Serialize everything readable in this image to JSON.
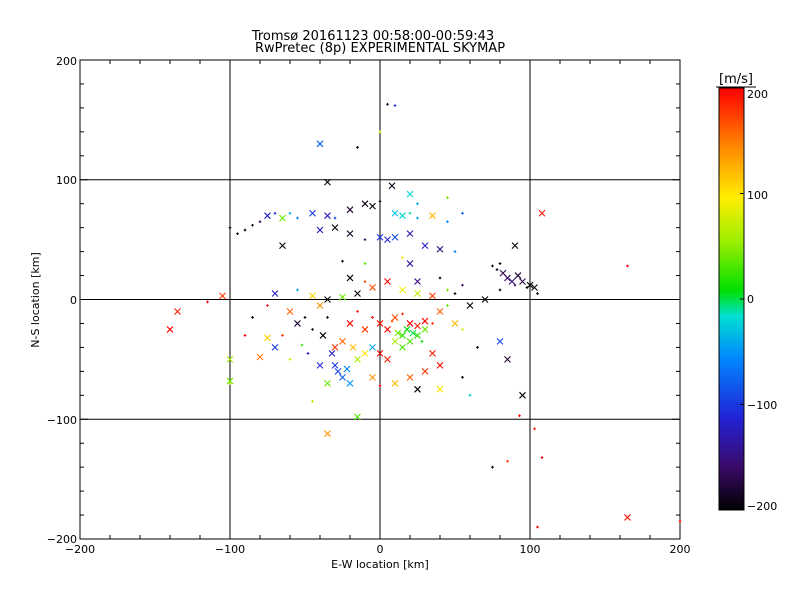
{
  "chart_data": {
    "type": "scatter",
    "title": "Tromsø 20161123 00:58:00-00:59:43",
    "subtitle": "RwPretec (8p) EXPERIMENTAL SKYMAP",
    "xlabel": "E-W location [km]",
    "ylabel": "N-S location [km]",
    "xlim": [
      -200,
      200
    ],
    "ylim": [
      -200,
      200
    ],
    "x_ticks": [
      "−200",
      "−100",
      "0",
      "100",
      "200"
    ],
    "y_ticks": [
      "−200",
      "−100",
      "0",
      "100",
      "200"
    ],
    "grid": true,
    "grid_values": [
      -100,
      0,
      100
    ],
    "colorbar": {
      "unit": "[m/s]",
      "range": [
        -200,
        200
      ],
      "tick_labels": [
        "200",
        "100",
        "0",
        "−100",
        "−200"
      ],
      "colormap": "rainbow-black (black=-200, purple, blue, cyan, green, yellow, red=200)"
    },
    "markers": [
      "plus-small",
      "x"
    ],
    "points": [
      [
        -40,
        130,
        -80,
        "x"
      ],
      [
        -15,
        127,
        -200,
        "plus"
      ],
      [
        5,
        163,
        -180,
        "plus"
      ],
      [
        10,
        162,
        -110,
        "plus"
      ],
      [
        0,
        140,
        60,
        "plus"
      ],
      [
        -35,
        98,
        -200,
        "x"
      ],
      [
        8,
        95,
        -190,
        "x"
      ],
      [
        20,
        88,
        -20,
        "x"
      ],
      [
        25,
        80,
        -40,
        "plus"
      ],
      [
        45,
        85,
        40,
        "plus"
      ],
      [
        -100,
        60,
        -200,
        "plus"
      ],
      [
        -95,
        55,
        -200,
        "plus"
      ],
      [
        -90,
        58,
        -200,
        "plus"
      ],
      [
        -85,
        62,
        -200,
        "plus"
      ],
      [
        -80,
        65,
        -160,
        "plus"
      ],
      [
        -75,
        70,
        -120,
        "x"
      ],
      [
        -70,
        72,
        -100,
        "plus"
      ],
      [
        -65,
        68,
        40,
        "x"
      ],
      [
        -60,
        72,
        -40,
        "plus"
      ],
      [
        -55,
        68,
        -60,
        "plus"
      ],
      [
        -45,
        72,
        -100,
        "x"
      ],
      [
        -35,
        70,
        -120,
        "x"
      ],
      [
        -30,
        68,
        -90,
        "plus"
      ],
      [
        -20,
        75,
        -180,
        "x"
      ],
      [
        -10,
        80,
        -190,
        "x"
      ],
      [
        -5,
        78,
        -200,
        "x"
      ],
      [
        0,
        82,
        -200,
        "plus"
      ],
      [
        10,
        72,
        -30,
        "x"
      ],
      [
        15,
        70,
        -20,
        "x"
      ],
      [
        20,
        72,
        -10,
        "plus"
      ],
      [
        25,
        68,
        -40,
        "plus"
      ],
      [
        35,
        70,
        120,
        "x"
      ],
      [
        45,
        65,
        -60,
        "plus"
      ],
      [
        55,
        72,
        -80,
        "plus"
      ],
      [
        -65,
        45,
        -200,
        "x"
      ],
      [
        -40,
        58,
        -120,
        "x"
      ],
      [
        -30,
        60,
        -200,
        "x"
      ],
      [
        -20,
        55,
        -190,
        "x"
      ],
      [
        -10,
        50,
        -160,
        "plus"
      ],
      [
        0,
        52,
        -100,
        "x"
      ],
      [
        5,
        50,
        -110,
        "x"
      ],
      [
        10,
        52,
        -90,
        "x"
      ],
      [
        20,
        55,
        -130,
        "x"
      ],
      [
        30,
        45,
        -120,
        "x"
      ],
      [
        40,
        42,
        -150,
        "x"
      ],
      [
        50,
        40,
        -60,
        "plus"
      ],
      [
        -105,
        3,
        180,
        "x"
      ],
      [
        108,
        72,
        190,
        "x"
      ],
      [
        165,
        28,
        200,
        "plus"
      ],
      [
        -140,
        -25,
        200,
        "x"
      ],
      [
        -135,
        -10,
        190,
        "x"
      ],
      [
        -115,
        -2,
        200,
        "plus"
      ],
      [
        -100,
        -50,
        60,
        "x"
      ],
      [
        -100,
        -68,
        40,
        "x"
      ],
      [
        75,
        28,
        -200,
        "plus"
      ],
      [
        78,
        25,
        -190,
        "plus"
      ],
      [
        80,
        30,
        -200,
        "plus"
      ],
      [
        82,
        22,
        -170,
        "x"
      ],
      [
        85,
        18,
        -160,
        "x"
      ],
      [
        88,
        15,
        -150,
        "x"
      ],
      [
        90,
        12,
        -160,
        "plus"
      ],
      [
        92,
        20,
        -180,
        "x"
      ],
      [
        95,
        15,
        -170,
        "x"
      ],
      [
        98,
        10,
        -200,
        "plus"
      ],
      [
        100,
        12,
        -200,
        "x"
      ],
      [
        103,
        10,
        -190,
        "x"
      ],
      [
        105,
        5,
        -200,
        "plus"
      ],
      [
        90,
        45,
        -200,
        "x"
      ],
      [
        80,
        8,
        -200,
        "plus"
      ],
      [
        -70,
        5,
        -120,
        "x"
      ],
      [
        -55,
        -20,
        -180,
        "x"
      ],
      [
        -50,
        -15,
        -200,
        "plus"
      ],
      [
        -45,
        -25,
        -190,
        "plus"
      ],
      [
        -40,
        -5,
        140,
        "x"
      ],
      [
        -38,
        -30,
        -200,
        "x"
      ],
      [
        -35,
        -15,
        -200,
        "plus"
      ],
      [
        -32,
        -45,
        -120,
        "x"
      ],
      [
        -30,
        -55,
        -100,
        "x"
      ],
      [
        -28,
        -60,
        -90,
        "x"
      ],
      [
        -25,
        -65,
        -80,
        "x"
      ],
      [
        -22,
        -58,
        -60,
        "x"
      ],
      [
        -20,
        -70,
        -50,
        "x"
      ],
      [
        -35,
        -70,
        40,
        "x"
      ],
      [
        -40,
        -55,
        -110,
        "x"
      ],
      [
        -30,
        -40,
        180,
        "x"
      ],
      [
        -25,
        -35,
        160,
        "x"
      ],
      [
        -20,
        -20,
        200,
        "x"
      ],
      [
        -15,
        -10,
        190,
        "plus"
      ],
      [
        -10,
        -25,
        180,
        "x"
      ],
      [
        -5,
        -15,
        200,
        "plus"
      ],
      [
        0,
        -20,
        190,
        "x"
      ],
      [
        5,
        -25,
        200,
        "x"
      ],
      [
        8,
        -18,
        170,
        "plus"
      ],
      [
        10,
        -35,
        60,
        "x"
      ],
      [
        12,
        -28,
        40,
        "x"
      ],
      [
        15,
        -30,
        20,
        "x"
      ],
      [
        18,
        -25,
        10,
        "x"
      ],
      [
        20,
        -35,
        30,
        "x"
      ],
      [
        22,
        -28,
        0,
        "x"
      ],
      [
        25,
        -30,
        20,
        "x"
      ],
      [
        28,
        -35,
        10,
        "plus"
      ],
      [
        30,
        -25,
        40,
        "x"
      ],
      [
        15,
        -40,
        30,
        "x"
      ],
      [
        20,
        -20,
        200,
        "x"
      ],
      [
        25,
        -22,
        190,
        "x"
      ],
      [
        30,
        -18,
        200,
        "x"
      ],
      [
        35,
        -20,
        180,
        "plus"
      ],
      [
        10,
        -15,
        170,
        "x"
      ],
      [
        15,
        -12,
        190,
        "plus"
      ],
      [
        -5,
        -40,
        -40,
        "x"
      ],
      [
        0,
        -45,
        200,
        "x"
      ],
      [
        5,
        -50,
        190,
        "x"
      ],
      [
        -10,
        -45,
        100,
        "x"
      ],
      [
        -15,
        -50,
        60,
        "x"
      ],
      [
        -18,
        -40,
        120,
        "x"
      ],
      [
        40,
        -10,
        160,
        "x"
      ],
      [
        45,
        -5,
        30,
        "plus"
      ],
      [
        50,
        -20,
        120,
        "x"
      ],
      [
        55,
        -25,
        80,
        "plus"
      ],
      [
        35,
        -45,
        190,
        "x"
      ],
      [
        40,
        -55,
        200,
        "x"
      ],
      [
        30,
        -60,
        180,
        "x"
      ],
      [
        20,
        -65,
        160,
        "x"
      ],
      [
        10,
        -70,
        120,
        "x"
      ],
      [
        0,
        -72,
        200,
        "plus"
      ],
      [
        -5,
        -65,
        140,
        "x"
      ],
      [
        -60,
        -10,
        160,
        "x"
      ],
      [
        -65,
        -30,
        180,
        "plus"
      ],
      [
        -70,
        -40,
        -100,
        "x"
      ],
      [
        -75,
        -32,
        110,
        "x"
      ],
      [
        -80,
        -48,
        150,
        "x"
      ],
      [
        -90,
        -30,
        200,
        "plus"
      ],
      [
        -48,
        -45,
        -120,
        "plus"
      ],
      [
        -52,
        -38,
        20,
        "plus"
      ],
      [
        -60,
        -50,
        70,
        "plus"
      ],
      [
        -15,
        -98,
        30,
        "x"
      ],
      [
        -35,
        -112,
        140,
        "x"
      ],
      [
        -45,
        -85,
        60,
        "plus"
      ],
      [
        25,
        -75,
        -200,
        "x"
      ],
      [
        40,
        -75,
        100,
        "x"
      ],
      [
        55,
        -65,
        -200,
        "plus"
      ],
      [
        60,
        -80,
        -20,
        "plus"
      ],
      [
        95,
        -80,
        -200,
        "x"
      ],
      [
        85,
        -50,
        -180,
        "x"
      ],
      [
        80,
        -35,
        -90,
        "x"
      ],
      [
        65,
        -40,
        -200,
        "plus"
      ],
      [
        60,
        -5,
        -200,
        "x"
      ],
      [
        70,
        0,
        -200,
        "x"
      ],
      [
        75,
        -140,
        -200,
        "plus"
      ],
      [
        85,
        -135,
        180,
        "plus"
      ],
      [
        103,
        -108,
        190,
        "plus"
      ],
      [
        108,
        -132,
        200,
        "plus"
      ],
      [
        93,
        -97,
        200,
        "plus"
      ],
      [
        105,
        -190,
        200,
        "plus"
      ],
      [
        165,
        -182,
        190,
        "x"
      ],
      [
        200,
        -185,
        200,
        "plus"
      ],
      [
        -100,
        -70,
        60,
        "plus"
      ],
      [
        -5,
        10,
        170,
        "x"
      ],
      [
        -15,
        5,
        -200,
        "x"
      ],
      [
        -25,
        2,
        40,
        "x"
      ],
      [
        -35,
        0,
        -200,
        "x"
      ],
      [
        -45,
        3,
        110,
        "x"
      ],
      [
        -55,
        8,
        -40,
        "plus"
      ],
      [
        15,
        8,
        90,
        "x"
      ],
      [
        25,
        5,
        70,
        "x"
      ],
      [
        35,
        3,
        180,
        "x"
      ],
      [
        45,
        8,
        40,
        "plus"
      ],
      [
        50,
        5,
        -200,
        "plus"
      ],
      [
        -10,
        15,
        170,
        "plus"
      ],
      [
        -20,
        18,
        -200,
        "x"
      ],
      [
        5,
        15,
        200,
        "x"
      ],
      [
        25,
        15,
        -150,
        "x"
      ],
      [
        40,
        18,
        -200,
        "plus"
      ],
      [
        55,
        12,
        -160,
        "plus"
      ],
      [
        -75,
        -5,
        200,
        "plus"
      ],
      [
        -85,
        -15,
        -200,
        "plus"
      ],
      [
        20,
        30,
        -130,
        "x"
      ],
      [
        15,
        35,
        100,
        "plus"
      ],
      [
        -10,
        30,
        30,
        "plus"
      ],
      [
        -25,
        32,
        -200,
        "plus"
      ]
    ]
  }
}
